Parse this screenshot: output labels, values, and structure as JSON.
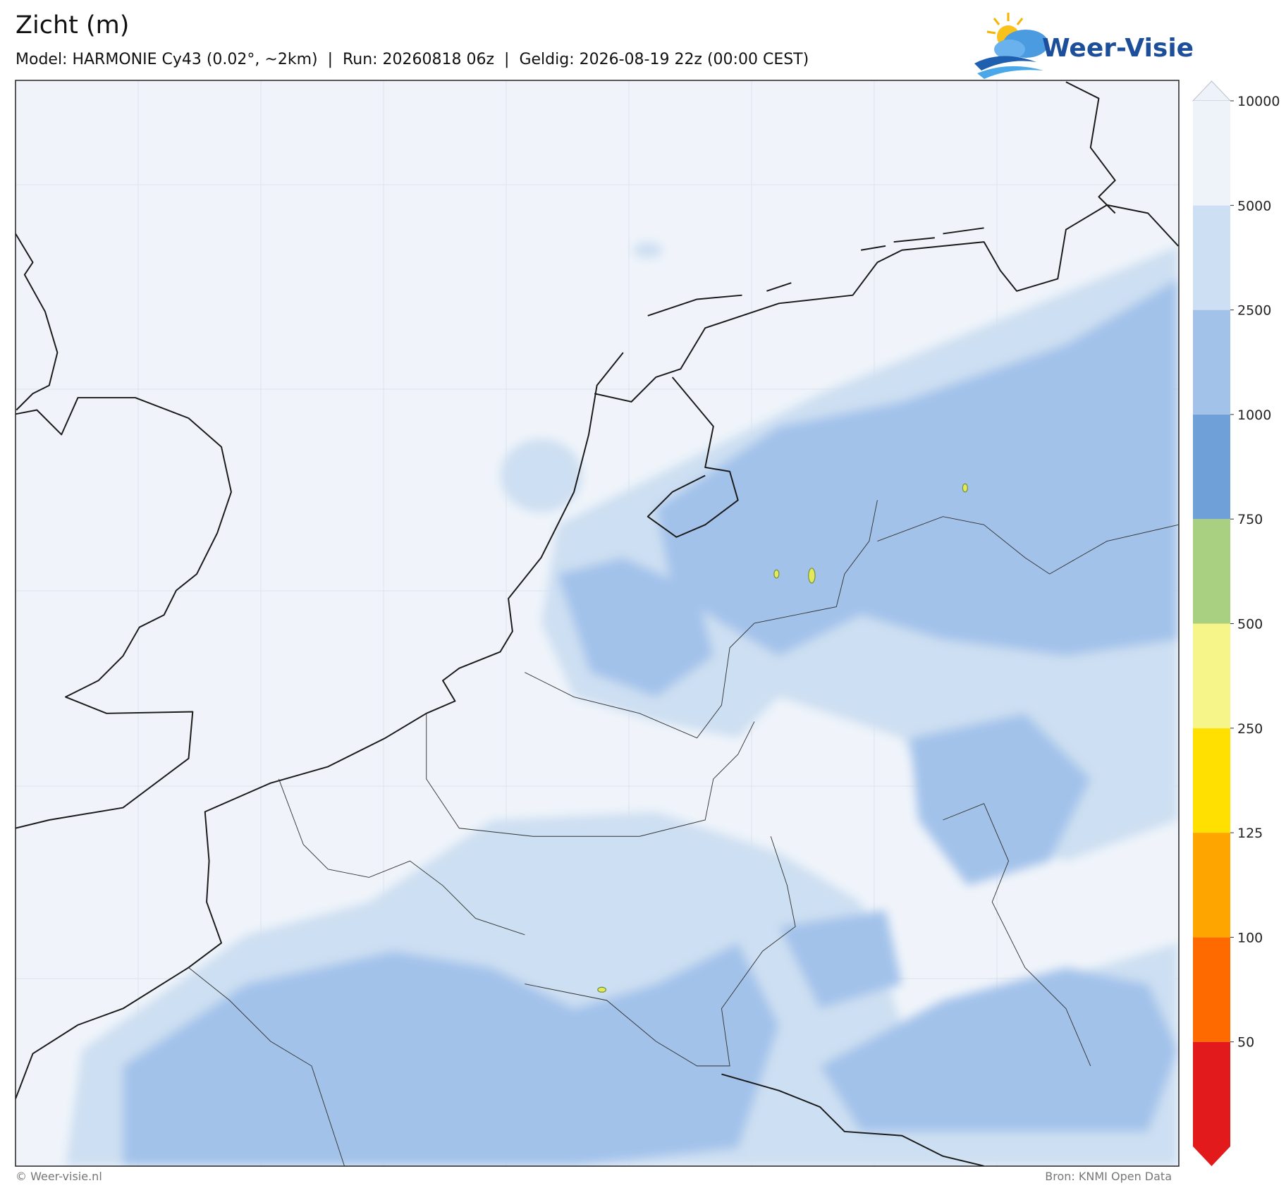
{
  "header": {
    "title": "Zicht (m)",
    "subtitle": "Model: HARMONIE Cy43 (0.02°, ~2km)  |  Run: 20260818 06z  |  Geldig: 2026-08-19 22z (00:00 CEST)"
  },
  "logo": {
    "text": "Weer-Visie"
  },
  "colorbar": {
    "ticks": [
      50,
      100,
      125,
      250,
      500,
      750,
      1000,
      2500,
      5000,
      10000
    ],
    "colors": [
      "#e31a1c",
      "#ff6a00",
      "#ffa500",
      "#ffe000",
      "#f5f58a",
      "#a8d080",
      "#6fa0d8",
      "#a3c2ea",
      "#cddff2",
      "#eef3fa"
    ]
  },
  "footer": {
    "left": "© Weer-visie.nl",
    "right": "Bron: KNMI Open Data"
  }
}
